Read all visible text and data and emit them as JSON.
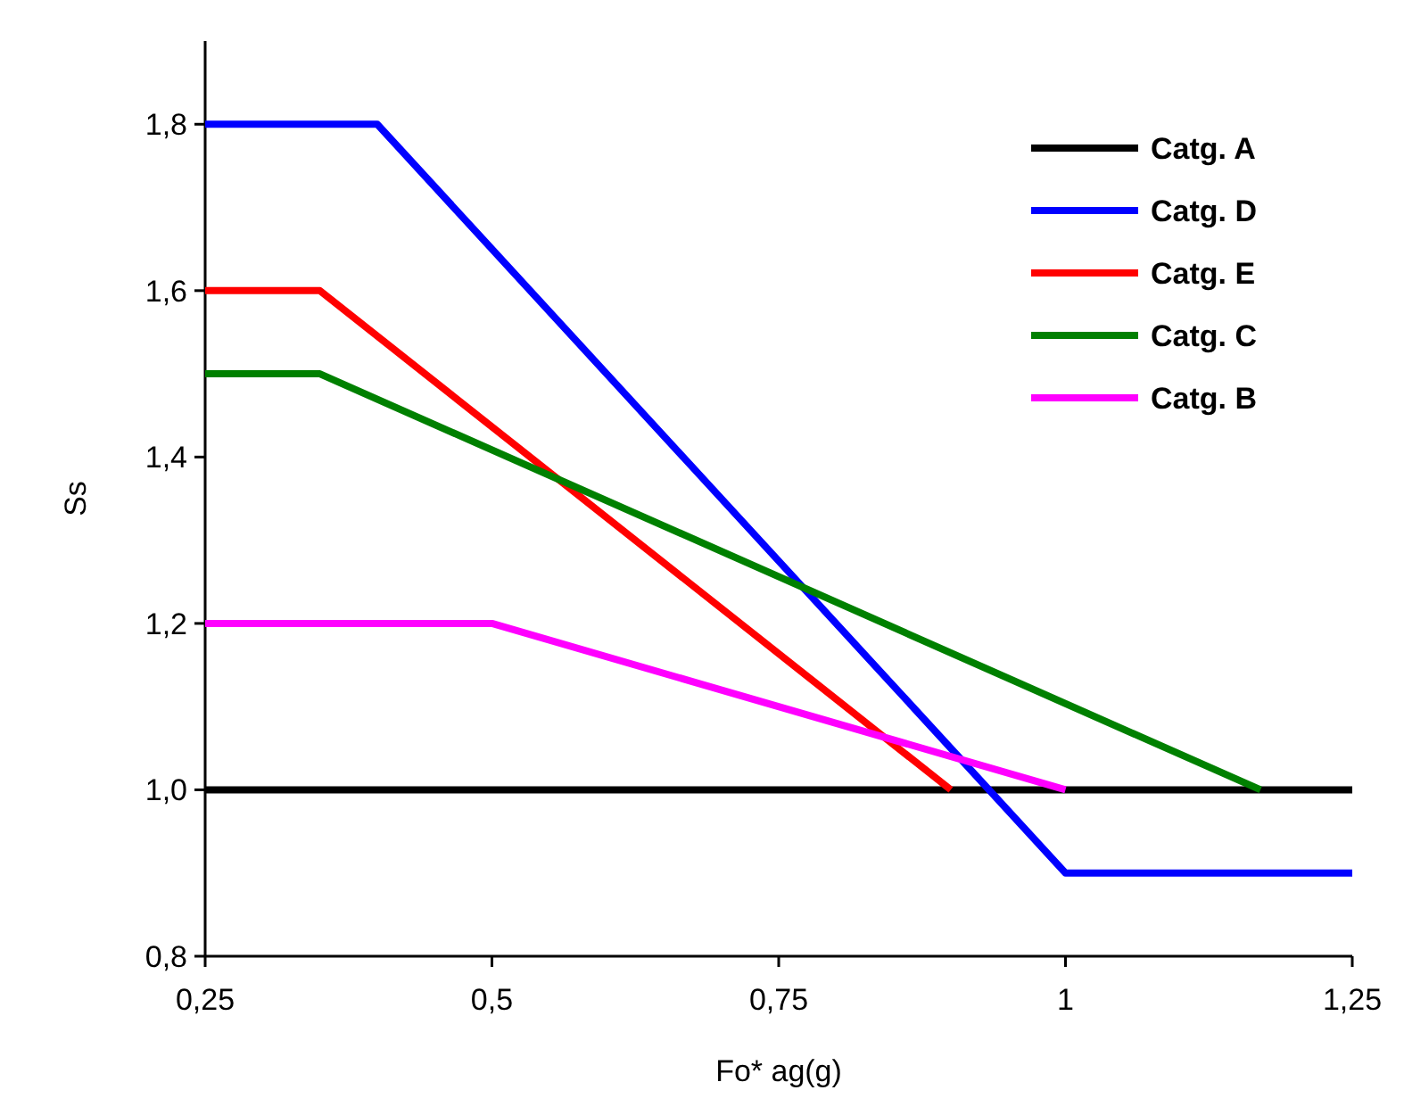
{
  "chart_data": {
    "type": "line",
    "xlabel": "Fo* ag(g)",
    "ylabel": "Ss",
    "xlim": [
      0.25,
      1.25
    ],
    "ylim": [
      0.8,
      1.9
    ],
    "xticks": [
      {
        "value": 0.25,
        "label": "0,25"
      },
      {
        "value": 0.5,
        "label": "0,5"
      },
      {
        "value": 0.75,
        "label": "0,75"
      },
      1,
      {
        "value": 1.25,
        "label": "1,25"
      }
    ],
    "yticks": [
      {
        "value": 0.8,
        "label": "0,8"
      },
      {
        "value": 1.0,
        "label": "1,0"
      },
      {
        "value": 1.2,
        "label": "1,2"
      },
      {
        "value": 1.4,
        "label": "1,4"
      },
      {
        "value": 1.6,
        "label": "1,6"
      },
      {
        "value": 1.8,
        "label": "1,8"
      }
    ],
    "grid": false,
    "legend": "top right",
    "marker": "none",
    "line_style": "solid",
    "series": [
      {
        "name": "Catg. A",
        "color": "#000000",
        "x": [
          0.25,
          1.25
        ],
        "values": [
          1.0,
          1.0
        ]
      },
      {
        "name": "Catg. D",
        "color": "#0000ff",
        "x": [
          0.25,
          0.4,
          1.0,
          1.25
        ],
        "values": [
          1.8,
          1.8,
          0.9,
          0.9
        ]
      },
      {
        "name": "Catg. E",
        "color": "#ff0000",
        "x": [
          0.25,
          0.35,
          0.9
        ],
        "values": [
          1.6,
          1.6,
          1.0
        ]
      },
      {
        "name": "Catg. C",
        "color": "#008000",
        "x": [
          0.25,
          0.35,
          1.17
        ],
        "values": [
          1.5,
          1.5,
          1.0
        ]
      },
      {
        "name": "Catg. B",
        "color": "#ff00ff",
        "x": [
          0.25,
          0.5,
          1.0
        ],
        "values": [
          1.2,
          1.2,
          1.0
        ]
      }
    ]
  }
}
